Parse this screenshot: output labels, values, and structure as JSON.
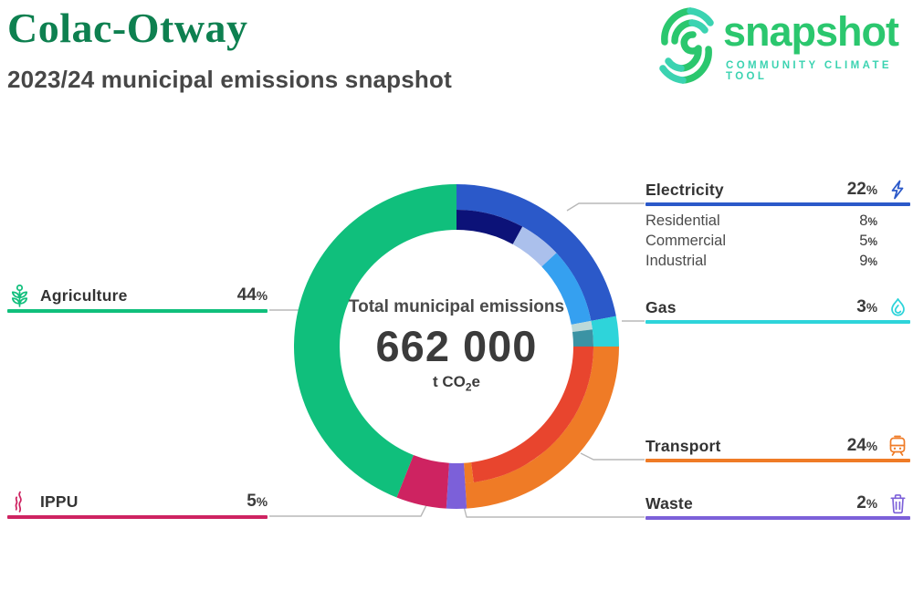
{
  "header": {
    "title": "Colac-Otway",
    "subtitle": "2023/24 municipal emissions snapshot"
  },
  "logo": {
    "word": "snapshot",
    "tagline": "COMMUNITY CLIMATE TOOL",
    "green": "#2bc76e",
    "teal": "#3bd3b1"
  },
  "center": {
    "caption": "Total municipal emissions",
    "value": "662 000",
    "unit_main": "t CO",
    "unit_sub": "2",
    "unit_tail": "e"
  },
  "chart_data": {
    "type": "pie",
    "title": "Total municipal emissions",
    "total_value": 662000,
    "total_unit": "t CO2e",
    "start_angle_deg": 0,
    "direction": "clockwise",
    "segments": [
      {
        "label": "Electricity",
        "value": 22,
        "color": "#2b59c9",
        "sub_segments": [
          {
            "label": "Residential",
            "value": 8,
            "color": "#0c1278"
          },
          {
            "label": "Commercial",
            "value": 5,
            "color": "#abc0ec"
          },
          {
            "label": "Industrial",
            "value": 9,
            "color": "#35a0f0"
          }
        ]
      },
      {
        "label": "Gas",
        "value": 3,
        "color": "#2ed4da",
        "sub_segments": [
          {
            "value": 1,
            "color": "#bcd9d9"
          },
          {
            "value": 2,
            "color": "#3b93a4"
          }
        ]
      },
      {
        "label": "Transport",
        "value": 24,
        "color": "#ef7b26",
        "sub_segments": [
          {
            "value": 23,
            "color": "#e8452e"
          },
          {
            "value": 1,
            "color": "#ef7b26"
          }
        ]
      },
      {
        "label": "Waste",
        "value": 2,
        "color": "#7c60d9"
      },
      {
        "label": "IPPU",
        "value": 5,
        "color": "#ce2361"
      },
      {
        "label": "Agriculture",
        "value": 44,
        "color": "#10bf7c"
      }
    ]
  },
  "callouts": {
    "electricity": {
      "label": "Electricity",
      "pct": "22%",
      "color": "#2b59c9",
      "subs": [
        {
          "label": "Residential",
          "pct": "8%"
        },
        {
          "label": "Commercial",
          "pct": "5%"
        },
        {
          "label": "Industrial",
          "pct": "9%"
        }
      ]
    },
    "gas": {
      "label": "Gas",
      "pct": "3%",
      "color": "#2ed4da"
    },
    "transport": {
      "label": "Transport",
      "pct": "24%",
      "color": "#ef7b26"
    },
    "waste": {
      "label": "Waste",
      "pct": "2%",
      "color": "#7c60d9"
    },
    "agriculture": {
      "label": "Agriculture",
      "pct": "44%",
      "color": "#10bf7c"
    },
    "ippu": {
      "label": "IPPU",
      "pct": "5%",
      "color": "#ce2361"
    }
  }
}
